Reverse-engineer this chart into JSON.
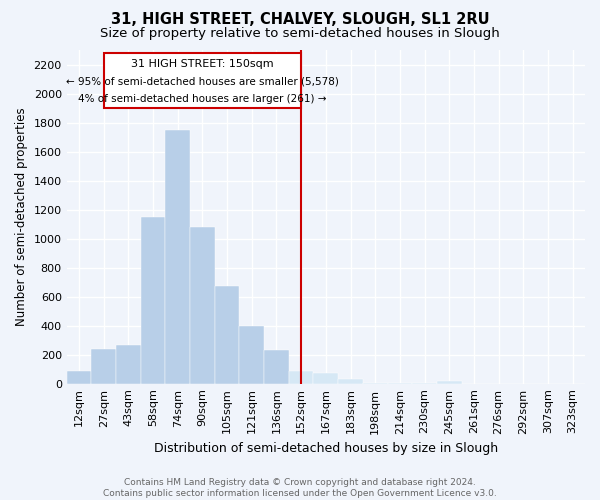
{
  "title": "31, HIGH STREET, CHALVEY, SLOUGH, SL1 2RU",
  "subtitle": "Size of property relative to semi-detached houses in Slough",
  "xlabel": "Distribution of semi-detached houses by size in Slough",
  "ylabel": "Number of semi-detached properties",
  "categories": [
    "12sqm",
    "27sqm",
    "43sqm",
    "58sqm",
    "74sqm",
    "90sqm",
    "105sqm",
    "121sqm",
    "136sqm",
    "152sqm",
    "167sqm",
    "183sqm",
    "198sqm",
    "214sqm",
    "230sqm",
    "245sqm",
    "261sqm",
    "276sqm",
    "292sqm",
    "307sqm",
    "323sqm"
  ],
  "values": [
    90,
    240,
    270,
    1150,
    1750,
    1080,
    670,
    400,
    230,
    85,
    75,
    35,
    5,
    5,
    5,
    20,
    0,
    0,
    0,
    0,
    0
  ],
  "bar_color_left": "#b8cfe8",
  "bar_color_right": "#d6e8f5",
  "marker_bin_index": 9,
  "annotation_text_line1": "31 HIGH STREET: 150sqm",
  "annotation_text_line2": "← 95% of semi-detached houses are smaller (5,578)",
  "annotation_text_line3": "4% of semi-detached houses are larger (261) →",
  "vline_color": "#cc0000",
  "annotation_box_color": "#cc0000",
  "ylim": [
    0,
    2300
  ],
  "yticks": [
    0,
    200,
    400,
    600,
    800,
    1000,
    1200,
    1400,
    1600,
    1800,
    2000,
    2200
  ],
  "footer_line1": "Contains HM Land Registry data © Crown copyright and database right 2024.",
  "footer_line2": "Contains public sector information licensed under the Open Government Licence v3.0.",
  "background_color": "#f0f4fb",
  "grid_color": "#ffffff",
  "title_fontsize": 10.5,
  "subtitle_fontsize": 9.5,
  "xlabel_fontsize": 9,
  "ylabel_fontsize": 8.5,
  "tick_fontsize": 8,
  "footer_fontsize": 6.5
}
